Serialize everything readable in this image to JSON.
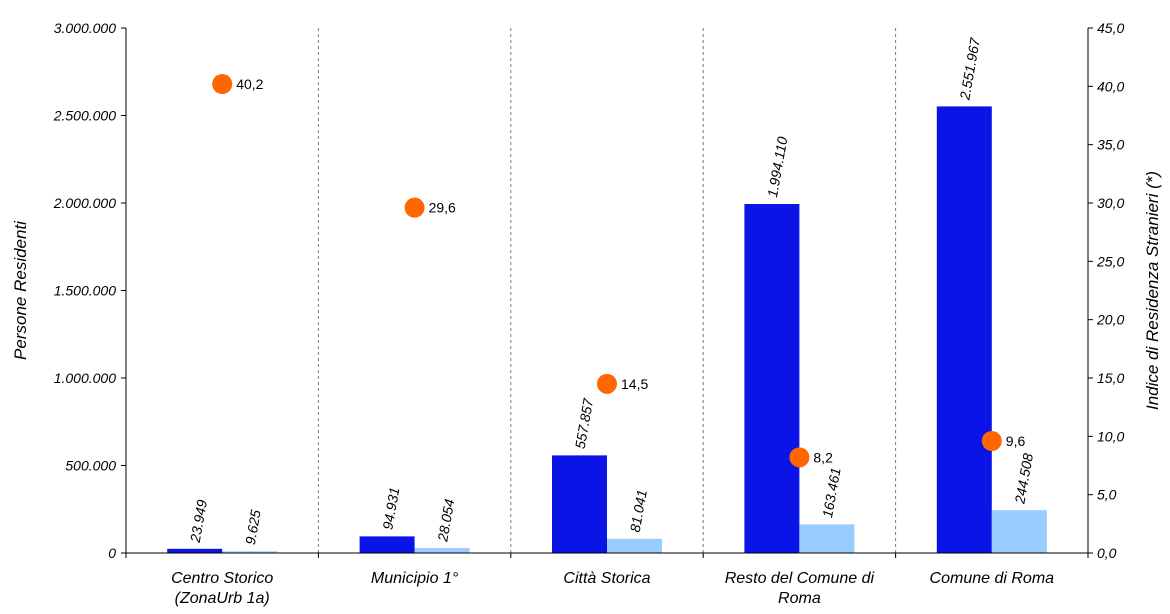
{
  "chart_data": {
    "type": "bar",
    "categories": [
      [
        "Centro Storico",
        "(ZonaUrb 1a)"
      ],
      [
        "Municipio 1°"
      ],
      [
        "Città Storica"
      ],
      [
        "Resto del Comune di",
        "Roma"
      ],
      [
        "Comune di Roma"
      ]
    ],
    "series": [
      {
        "axis": "left",
        "color": "#0a14e6",
        "values": [
          23949,
          94931,
          557857,
          1994110,
          2551967
        ],
        "labels": [
          "23.949",
          "94.931",
          "557.857",
          "1.994.110",
          "2.551.967"
        ]
      },
      {
        "axis": "left",
        "color": "#99ccff",
        "values": [
          9625,
          28054,
          81041,
          163461,
          244508
        ],
        "labels": [
          "9.625",
          "28.054",
          "81.041",
          "163.461",
          "244.508"
        ]
      },
      {
        "axis": "right",
        "type": "scatter",
        "color": "#ff6600",
        "values": [
          40.2,
          29.6,
          14.5,
          8.2,
          9.6
        ],
        "labels": [
          "40,2",
          "29,6",
          "14,5",
          "8,2",
          "9,6"
        ]
      }
    ],
    "ylabel_left": "Persone Residenti",
    "ylabel_right": "Indice di Residenza Stranieri (*)",
    "ylim_left": [
      0,
      3000000
    ],
    "ylim_right": [
      0,
      45
    ],
    "yticks_left": [
      {
        "value": 0,
        "label": "0"
      },
      {
        "value": 500000,
        "label": "500.000"
      },
      {
        "value": 1000000,
        "label": "1.000.000"
      },
      {
        "value": 1500000,
        "label": "1.500.000"
      },
      {
        "value": 2000000,
        "label": "2.000.000"
      },
      {
        "value": 2500000,
        "label": "2.500.000"
      },
      {
        "value": 3000000,
        "label": "3.000.000"
      }
    ],
    "yticks_right": [
      {
        "value": 0,
        "label": "0,0"
      },
      {
        "value": 5,
        "label": "5,0"
      },
      {
        "value": 10,
        "label": "10,0"
      },
      {
        "value": 15,
        "label": "15,0"
      },
      {
        "value": 20,
        "label": "20,0"
      },
      {
        "value": 25,
        "label": "25,0"
      },
      {
        "value": 30,
        "label": "30,0"
      },
      {
        "value": 35,
        "label": "35,0"
      },
      {
        "value": 40,
        "label": "40,0"
      },
      {
        "value": 45,
        "label": "45,0"
      }
    ],
    "grid": false,
    "category_separators": "dashed"
  }
}
